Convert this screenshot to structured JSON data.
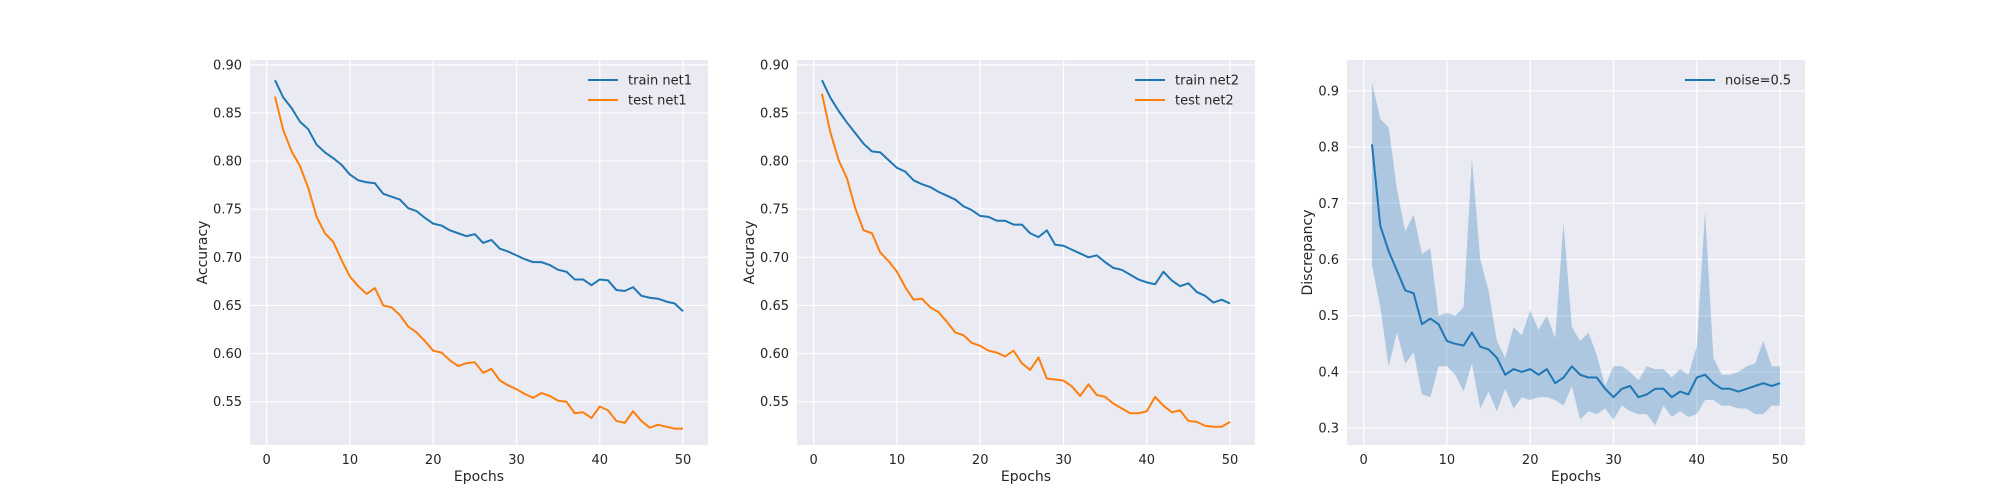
{
  "figure": {
    "background": "#ffffff"
  },
  "colors": {
    "plot_bg": "#eaeaf2",
    "grid": "#ffffff",
    "train": "#1f77b4",
    "test": "#ff7f0e",
    "band": "#1f77b4",
    "tick_text": "#262626"
  },
  "chart_data": [
    {
      "type": "line",
      "xlabel": "Epochs",
      "ylabel": "Accuracy",
      "xlim": [
        -2,
        53
      ],
      "ylim": [
        0.505,
        0.905
      ],
      "xticks": [
        0,
        10,
        20,
        30,
        40,
        50
      ],
      "yticks": [
        0.55,
        0.6,
        0.65,
        0.7,
        0.75,
        0.8,
        0.85,
        0.9
      ],
      "ytick_labels": [
        "0.55",
        "0.60",
        "0.65",
        "0.70",
        "0.75",
        "0.80",
        "0.85",
        "0.90"
      ],
      "xtick_labels": [
        "0",
        "10",
        "20",
        "30",
        "40",
        "50"
      ],
      "grid": true,
      "legend_position": "top-right",
      "x": [
        1,
        2,
        3,
        4,
        5,
        6,
        7,
        8,
        9,
        10,
        11,
        12,
        13,
        14,
        15,
        16,
        17,
        18,
        19,
        20,
        21,
        22,
        23,
        24,
        25,
        26,
        27,
        28,
        29,
        30,
        31,
        32,
        33,
        34,
        35,
        36,
        37,
        38,
        39,
        40,
        41,
        42,
        43,
        44,
        45,
        46,
        47,
        48,
        49,
        50
      ],
      "series": [
        {
          "name": "train net1",
          "color": "#1f77b4",
          "values": [
            0.884,
            0.866,
            0.855,
            0.841,
            0.833,
            0.817,
            0.809,
            0.803,
            0.796,
            0.786,
            0.78,
            0.778,
            0.777,
            0.766,
            0.763,
            0.76,
            0.751,
            0.748,
            0.741,
            0.735,
            0.733,
            0.728,
            0.725,
            0.722,
            0.724,
            0.715,
            0.718,
            0.709,
            0.706,
            0.702,
            0.698,
            0.695,
            0.695,
            0.692,
            0.687,
            0.685,
            0.677,
            0.677,
            0.671,
            0.677,
            0.676,
            0.666,
            0.665,
            0.669,
            0.66,
            0.658,
            0.657,
            0.654,
            0.652,
            0.644
          ]
        },
        {
          "name": "test net1",
          "color": "#ff7f0e",
          "values": [
            0.867,
            0.832,
            0.81,
            0.795,
            0.772,
            0.742,
            0.725,
            0.716,
            0.697,
            0.68,
            0.67,
            0.662,
            0.668,
            0.65,
            0.648,
            0.64,
            0.628,
            0.622,
            0.613,
            0.603,
            0.601,
            0.593,
            0.587,
            0.59,
            0.591,
            0.58,
            0.584,
            0.572,
            0.567,
            0.563,
            0.558,
            0.554,
            0.559,
            0.556,
            0.551,
            0.55,
            0.538,
            0.539,
            0.533,
            0.545,
            0.541,
            0.53,
            0.528,
            0.54,
            0.53,
            0.523,
            0.526,
            0.524,
            0.522,
            0.522
          ]
        }
      ]
    },
    {
      "type": "line",
      "xlabel": "Epochs",
      "ylabel": "Accuracy",
      "xlim": [
        -2,
        53
      ],
      "ylim": [
        0.505,
        0.905
      ],
      "xticks": [
        0,
        10,
        20,
        30,
        40,
        50
      ],
      "yticks": [
        0.55,
        0.6,
        0.65,
        0.7,
        0.75,
        0.8,
        0.85,
        0.9
      ],
      "ytick_labels": [
        "0.55",
        "0.60",
        "0.65",
        "0.70",
        "0.75",
        "0.80",
        "0.85",
        "0.90"
      ],
      "xtick_labels": [
        "0",
        "10",
        "20",
        "30",
        "40",
        "50"
      ],
      "grid": true,
      "legend_position": "top-right",
      "x": [
        1,
        2,
        3,
        4,
        5,
        6,
        7,
        8,
        9,
        10,
        11,
        12,
        13,
        14,
        15,
        16,
        17,
        18,
        19,
        20,
        21,
        22,
        23,
        24,
        25,
        26,
        27,
        28,
        29,
        30,
        31,
        32,
        33,
        34,
        35,
        36,
        37,
        38,
        39,
        40,
        41,
        42,
        43,
        44,
        45,
        46,
        47,
        48,
        49,
        50
      ],
      "series": [
        {
          "name": "train net2",
          "color": "#1f77b4",
          "values": [
            0.884,
            0.866,
            0.852,
            0.84,
            0.829,
            0.818,
            0.81,
            0.809,
            0.801,
            0.793,
            0.789,
            0.78,
            0.776,
            0.773,
            0.768,
            0.764,
            0.76,
            0.753,
            0.749,
            0.743,
            0.742,
            0.738,
            0.738,
            0.734,
            0.734,
            0.725,
            0.721,
            0.728,
            0.713,
            0.712,
            0.708,
            0.704,
            0.7,
            0.702,
            0.695,
            0.689,
            0.687,
            0.682,
            0.677,
            0.674,
            0.672,
            0.685,
            0.676,
            0.67,
            0.673,
            0.664,
            0.66,
            0.653,
            0.656,
            0.652
          ]
        },
        {
          "name": "test net2",
          "color": "#ff7f0e",
          "values": [
            0.87,
            0.83,
            0.801,
            0.782,
            0.751,
            0.728,
            0.725,
            0.705,
            0.696,
            0.685,
            0.669,
            0.656,
            0.657,
            0.648,
            0.643,
            0.633,
            0.622,
            0.619,
            0.611,
            0.608,
            0.603,
            0.601,
            0.597,
            0.603,
            0.59,
            0.583,
            0.596,
            0.574,
            0.573,
            0.572,
            0.566,
            0.556,
            0.568,
            0.557,
            0.555,
            0.548,
            0.543,
            0.538,
            0.538,
            0.54,
            0.555,
            0.546,
            0.539,
            0.541,
            0.53,
            0.529,
            0.525,
            0.524,
            0.524,
            0.529
          ]
        }
      ]
    },
    {
      "type": "area",
      "xlabel": "Epochs",
      "ylabel": "Discrepancy",
      "xlim": [
        -2,
        53
      ],
      "ylim": [
        0.27,
        0.955
      ],
      "xticks": [
        0,
        10,
        20,
        30,
        40,
        50
      ],
      "yticks": [
        0.3,
        0.4,
        0.5,
        0.6,
        0.7,
        0.8,
        0.9
      ],
      "ytick_labels": [
        "0.3",
        "0.4",
        "0.5",
        "0.6",
        "0.7",
        "0.8",
        "0.9"
      ],
      "xtick_labels": [
        "0",
        "10",
        "20",
        "30",
        "40",
        "50"
      ],
      "grid": true,
      "legend_position": "top-right",
      "x": [
        1,
        2,
        3,
        4,
        5,
        6,
        7,
        8,
        9,
        10,
        11,
        12,
        13,
        14,
        15,
        16,
        17,
        18,
        19,
        20,
        21,
        22,
        23,
        24,
        25,
        26,
        27,
        28,
        29,
        30,
        31,
        32,
        33,
        34,
        35,
        36,
        37,
        38,
        39,
        40,
        41,
        42,
        43,
        44,
        45,
        46,
        47,
        48,
        49,
        50
      ],
      "series": [
        {
          "name": "noise=0.5",
          "color": "#1f77b4",
          "values": [
            0.805,
            0.66,
            0.615,
            0.58,
            0.545,
            0.54,
            0.485,
            0.495,
            0.485,
            0.455,
            0.45,
            0.447,
            0.47,
            0.445,
            0.44,
            0.425,
            0.395,
            0.405,
            0.4,
            0.405,
            0.395,
            0.405,
            0.38,
            0.39,
            0.41,
            0.395,
            0.39,
            0.39,
            0.37,
            0.355,
            0.37,
            0.375,
            0.355,
            0.36,
            0.37,
            0.37,
            0.355,
            0.365,
            0.36,
            0.39,
            0.395,
            0.38,
            0.37,
            0.37,
            0.365,
            0.37,
            0.375,
            0.38,
            0.375,
            0.38
          ],
          "upper": [
            0.915,
            0.85,
            0.835,
            0.725,
            0.65,
            0.68,
            0.61,
            0.62,
            0.5,
            0.505,
            0.5,
            0.515,
            0.78,
            0.6,
            0.545,
            0.455,
            0.425,
            0.48,
            0.465,
            0.51,
            0.475,
            0.5,
            0.46,
            0.665,
            0.48,
            0.455,
            0.47,
            0.43,
            0.375,
            0.41,
            0.41,
            0.4,
            0.385,
            0.41,
            0.405,
            0.405,
            0.39,
            0.405,
            0.395,
            0.445,
            0.685,
            0.425,
            0.395,
            0.395,
            0.4,
            0.41,
            0.415,
            0.455,
            0.41,
            0.41
          ],
          "lower": [
            0.59,
            0.515,
            0.41,
            0.47,
            0.415,
            0.435,
            0.36,
            0.355,
            0.41,
            0.41,
            0.395,
            0.365,
            0.415,
            0.335,
            0.365,
            0.33,
            0.37,
            0.335,
            0.355,
            0.35,
            0.355,
            0.355,
            0.35,
            0.34,
            0.375,
            0.315,
            0.33,
            0.325,
            0.335,
            0.315,
            0.34,
            0.33,
            0.325,
            0.325,
            0.305,
            0.34,
            0.32,
            0.33,
            0.32,
            0.325,
            0.35,
            0.35,
            0.34,
            0.34,
            0.335,
            0.335,
            0.325,
            0.325,
            0.34,
            0.34
          ]
        }
      ]
    }
  ]
}
